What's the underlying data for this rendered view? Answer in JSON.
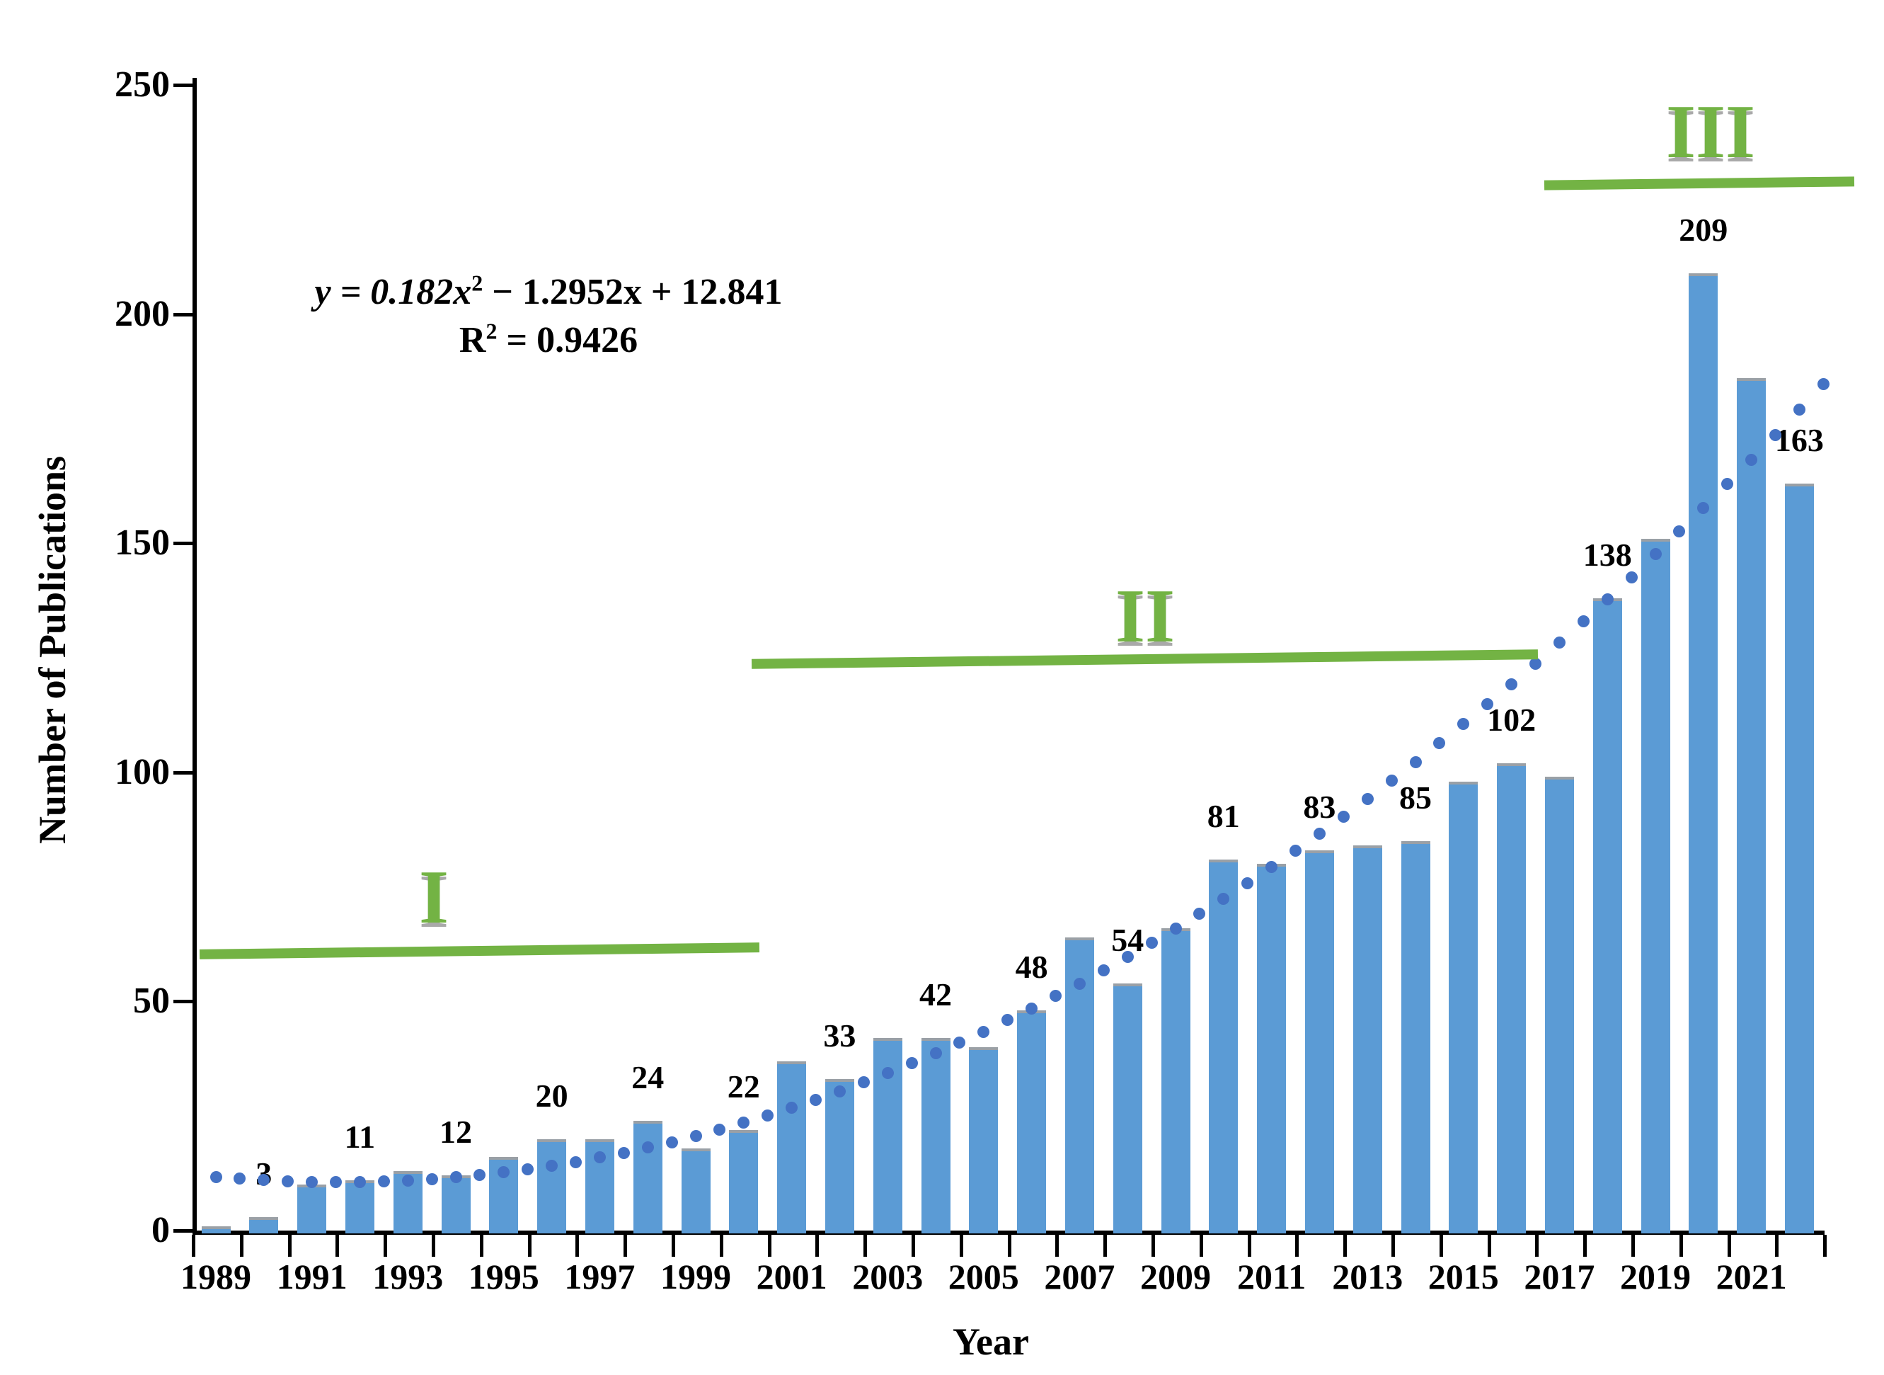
{
  "chart_data": {
    "type": "bar",
    "title": "",
    "xlabel": "Year",
    "ylabel": "Number of Publications",
    "ylim": [
      0,
      250
    ],
    "yticks": [
      "0",
      "50",
      "100",
      "150",
      "200",
      "250"
    ],
    "xtick_labels": [
      "1989",
      "1991",
      "1993",
      "1995",
      "1997",
      "1999",
      "2001",
      "2003",
      "2005",
      "2007",
      "2009",
      "2011",
      "2013",
      "2015",
      "2017",
      "2019",
      "2021"
    ],
    "categories": [
      "1989",
      "1990",
      "1991",
      "1992",
      "1993",
      "1994",
      "1995",
      "1996",
      "1997",
      "1998",
      "1999",
      "2000",
      "2001",
      "2002",
      "2003",
      "2004",
      "2005",
      "2006",
      "2007",
      "2008",
      "2009",
      "2010",
      "2011",
      "2012",
      "2013",
      "2014",
      "2015",
      "2016",
      "2017",
      "2018",
      "2019",
      "2020",
      "2021",
      "2022"
    ],
    "values": [
      1,
      3,
      10,
      11,
      13,
      12,
      16,
      20,
      20,
      24,
      18,
      22,
      37,
      33,
      42,
      42,
      40,
      48,
      64,
      54,
      66,
      81,
      80,
      83,
      84,
      85,
      98,
      102,
      99,
      138,
      151,
      209,
      186,
      163
    ],
    "bar_labels": [
      null,
      "3",
      null,
      "11",
      null,
      "12",
      null,
      "20",
      null,
      "24",
      null,
      "22",
      null,
      "33",
      null,
      "42",
      null,
      "48",
      null,
      "54",
      null,
      "81",
      null,
      "83",
      null,
      "85",
      null,
      "102",
      null,
      "138",
      null,
      "209",
      null,
      "163"
    ],
    "trendline": {
      "style": "dotted",
      "equation_parts": {
        "a": "y = 0.182x",
        "a_sup": "2",
        "b": " − 1.2952x + 12.841"
      },
      "r2_parts": {
        "a": "R",
        "a_sup": "2",
        "b": " = 0.9426"
      },
      "coefficients": {
        "a": 0.182,
        "b": -1.2952,
        "c": 12.841
      },
      "x_origin_year": 1989
    },
    "periods": [
      {
        "label": "I",
        "years": "1989–2000",
        "level": 61
      },
      {
        "label": "II",
        "years": "2000–2016",
        "level": 124
      },
      {
        "label": "III",
        "years": "2017–2022",
        "level": 229
      }
    ],
    "colors": {
      "bar": "#5B9BD5",
      "trend_dot": "#4472C4",
      "period": "#73B344",
      "axis": "#000000"
    },
    "legend": false,
    "grid": false
  }
}
